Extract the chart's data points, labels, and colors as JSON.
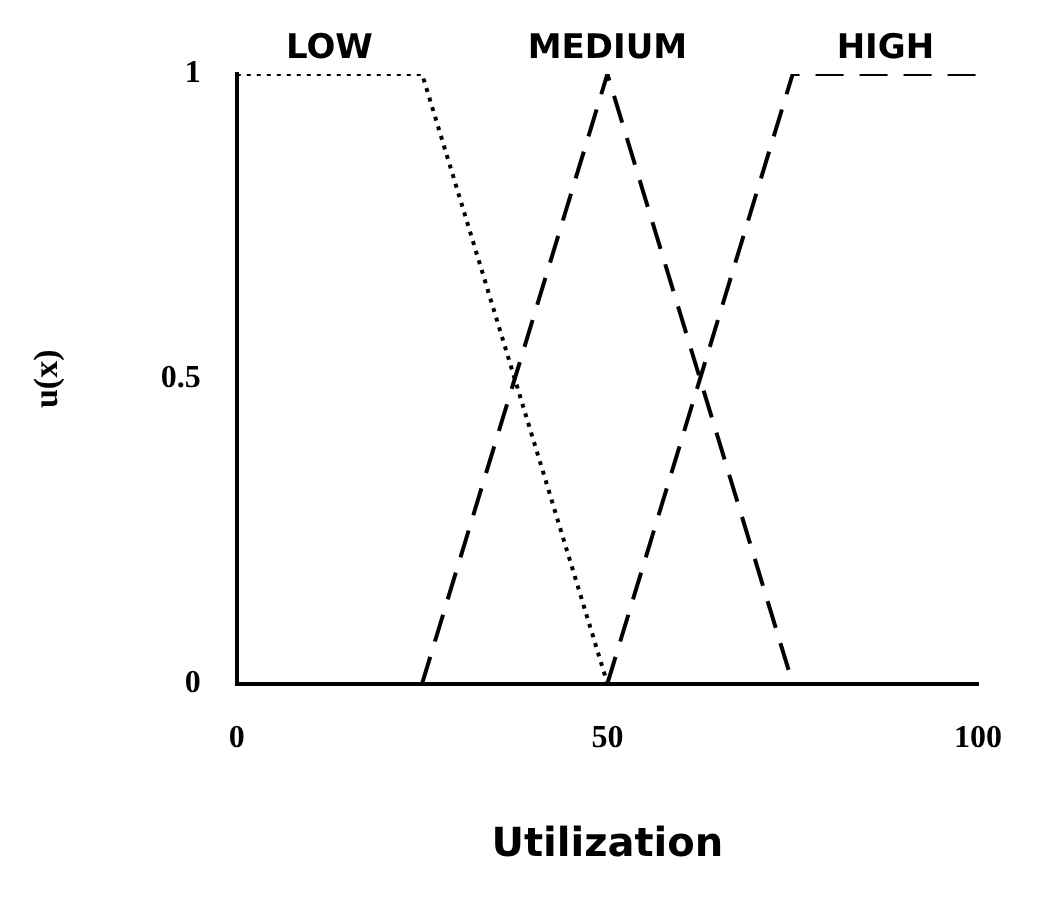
{
  "chart_data": {
    "type": "line",
    "xlabel": "Utilization",
    "ylabel": "u(x)",
    "xlim": [
      0,
      100
    ],
    "xticks": [
      0,
      50,
      100
    ],
    "ylim": [
      0,
      1
    ],
    "yticks": [
      0,
      0.5,
      1
    ],
    "grid": false,
    "legend": false,
    "marker": "none",
    "series": [
      {
        "name": "LOW",
        "color": "#000000",
        "line_style": "dotted",
        "x": [
          0,
          25,
          50
        ],
        "values": [
          1,
          1,
          0
        ]
      },
      {
        "name": "MEDIUM",
        "color": "#000000",
        "line_style": "dashed",
        "x": [
          25,
          50,
          75
        ],
        "values": [
          0,
          1,
          0
        ]
      },
      {
        "name": "HIGH",
        "color": "#000000",
        "line_style": "dashed",
        "x": [
          50,
          75,
          100
        ],
        "values": [
          0,
          1,
          1
        ]
      }
    ]
  }
}
